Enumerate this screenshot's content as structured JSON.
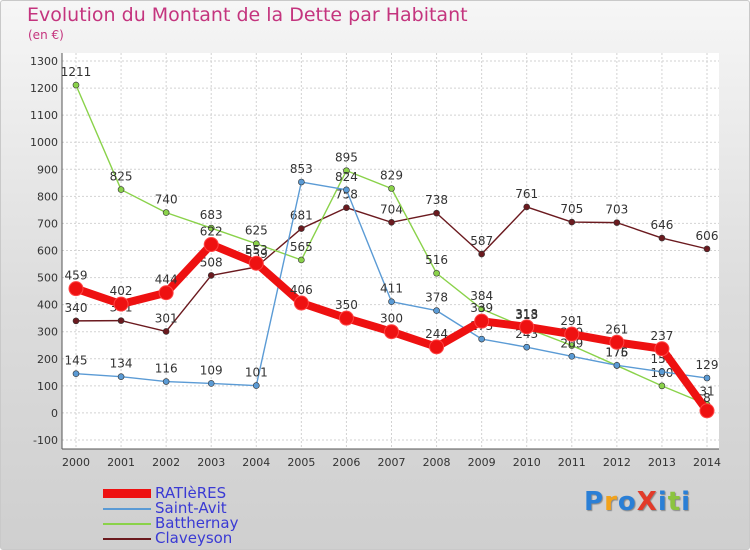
{
  "title": "Evolution du Montant de la Dette par Habitant",
  "subtitle": "(en €)",
  "logo": {
    "text": "ProXiti",
    "colors": [
      "#2a7fd6",
      "#f2a21a",
      "#2a7fd6",
      "#e23b2a",
      "#2a7fd6",
      "#8bc43f",
      "#2a7fd6"
    ]
  },
  "chart_data": {
    "type": "line",
    "x": [
      "2000",
      "2001",
      "2002",
      "2003",
      "2004",
      "2005",
      "2006",
      "2007",
      "2008",
      "2009",
      "2010",
      "2011",
      "2012",
      "2013",
      "2014"
    ],
    "ylim": [
      -100,
      1300
    ],
    "yticks": [
      "-100",
      "0",
      "100",
      "200",
      "300",
      "400",
      "500",
      "600",
      "700",
      "800",
      "900",
      "1000",
      "1100",
      "1200",
      "1300"
    ],
    "grid": true,
    "legend_position": "bottom-left",
    "series": [
      {
        "name": "Claveyson",
        "color": "#6b1a1f",
        "values": [
          340,
          341,
          301,
          508,
          539,
          681,
          758,
          704,
          738,
          587,
          761,
          705,
          703,
          646,
          606
        ],
        "labels": [
          "340",
          "341",
          "301",
          "508",
          "539",
          "681",
          "758",
          "704",
          "738",
          "587",
          "761",
          "705",
          "703",
          "646",
          "606"
        ]
      },
      {
        "name": "Batthernay",
        "color": "#8ad24a",
        "values": [
          1211,
          825,
          740,
          683,
          625,
          565,
          895,
          829,
          516,
          384,
          313,
          249,
          175,
          100,
          31
        ],
        "labels": [
          "1211",
          "825",
          "740",
          "683",
          "625",
          "565",
          "895",
          "829",
          "516",
          "384",
          "313",
          "249",
          "175",
          "100",
          "31"
        ]
      },
      {
        "name": "Saint-Avit",
        "color": "#5b9bd5",
        "values": [
          145,
          134,
          116,
          109,
          101,
          853,
          824,
          411,
          378,
          273,
          243,
          209,
          176,
          152,
          129
        ],
        "labels": [
          "145",
          "134",
          "116",
          "109",
          "101",
          "853",
          "824",
          "411",
          "378",
          "273",
          "243",
          "209",
          "176",
          "152",
          "129"
        ]
      },
      {
        "name": "RATIèRES",
        "color": "#ee1111",
        "values": [
          459,
          402,
          444,
          622,
          553,
          406,
          350,
          300,
          244,
          339,
          318,
          291,
          261,
          237,
          8
        ],
        "labels": [
          "459",
          "402",
          "444",
          "622",
          "553",
          "406",
          "350",
          "300",
          "244",
          "339",
          "318",
          "291",
          "261",
          "237",
          "8"
        ]
      }
    ]
  },
  "legend": [
    {
      "name": "RATIèRES",
      "color": "#ee1111"
    },
    {
      "name": "Saint-Avit",
      "color": "#5b9bd5"
    },
    {
      "name": "Batthernay",
      "color": "#8ad24a"
    },
    {
      "name": "Claveyson",
      "color": "#6b1a1f"
    }
  ]
}
